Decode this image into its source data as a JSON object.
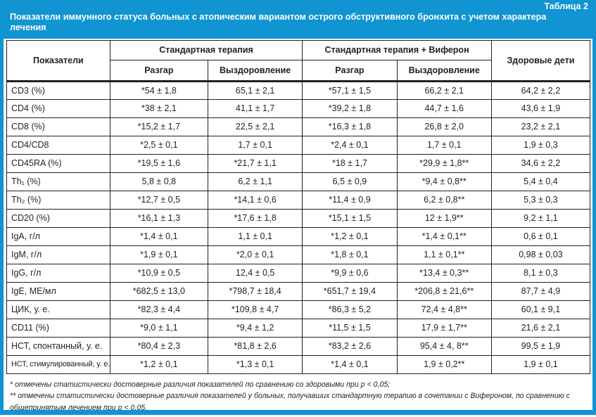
{
  "page": {
    "table_label": "Таблица 2",
    "title": "Показатели иммунного статуса больных с атопическим вариантом острого обструктивного бронхита с учетом характера лечения"
  },
  "table": {
    "col_headers": {
      "indicators": "Показатели",
      "group1": "Стандартная терапия",
      "group2": "Стандартная терапия + Виферон",
      "healthy": "Здоровые дети",
      "sub1": "Разгар",
      "sub2": "Выздоровление",
      "sub3": "Разгар",
      "sub4": "Выздоровление"
    },
    "rows": [
      {
        "label": "CD3 (%)",
        "values": [
          "*54 ± 1,8",
          "65,1 ± 2,1",
          "*57,1 ± 1,5",
          "66,2 ± 2,1",
          "64,2 ± 2,2"
        ]
      },
      {
        "label": "CD4 (%)",
        "values": [
          "*38 ± 2,1",
          "41,1 ± 1,7",
          "*39,2 ± 1,8",
          "44,7 ± 1,6",
          "43,6 ± 1,9"
        ]
      },
      {
        "label": "CD8 (%)",
        "values": [
          "*15,2 ± 1,7",
          "22,5 ± 2,1",
          "*16,3 ± 1,8",
          "26,8 ± 2,0",
          "23,2 ± 2,1"
        ]
      },
      {
        "label": "CD4/CD8",
        "values": [
          "*2,5 ± 0,1",
          "1,7 ± 0,1",
          "*2,4 ± 0,1",
          "1,7 ± 0,1",
          "1,9 ± 0,3"
        ]
      },
      {
        "label": "CD45RA (%)",
        "values": [
          "*19,5 ± 1,6",
          "*21,7 ± 1,1",
          "*18 ± 1,7",
          "*29,9 ± 1,8**",
          "34,6 ± 2,2"
        ]
      },
      {
        "label": "Th₁ (%)",
        "values": [
          "5,8 ± 0,8",
          "6,2 ± 1,1",
          "6,5 ± 0,9",
          "*9,4 ± 0,8**",
          "5,4 ± 0,4"
        ]
      },
      {
        "label": "Th₂ (%)",
        "values": [
          "*12,7 ± 0,5",
          "*14,1 ± 0,6",
          "*11,4 ± 0,9",
          "6,2 ± 0,8**",
          "5,3 ± 0,3"
        ]
      },
      {
        "label": "CD20 (%)",
        "values": [
          "*16,1 ± 1,3",
          "*17,6 ± 1,8",
          "*15,1 ± 1,5",
          "12 ± 1,9**",
          "9,2 ± 1,1"
        ]
      },
      {
        "label": "IgA, г/л",
        "values": [
          "*1,4 ± 0,1",
          "1,1 ± 0,1",
          "*1,2 ± 0,1",
          "*1,4 ± 0,1**",
          "0,6 ± 0,1"
        ]
      },
      {
        "label": "IgM, г/л",
        "values": [
          "*1,9 ± 0,1",
          "*2,0 ± 0,1",
          "*1,8 ± 0,1",
          "1,1 ± 0,1**",
          "0,98 ± 0,03"
        ]
      },
      {
        "label": "IgG, г/л",
        "values": [
          "*10,9 ± 0,5",
          "12,4 ± 0,5",
          "*9,9 ± 0,6",
          "*13,4 ± 0,3**",
          "8,1 ± 0,3"
        ]
      },
      {
        "label": "IgE, МЕ/мл",
        "values": [
          "*682,5 ± 13,0",
          "*798,7 ± 18,4",
          "*651,7 ± 19,4",
          "*206,8 ± 21,6**",
          "87,7 ± 4,9"
        ]
      },
      {
        "label": "ЦИК, у. е.",
        "values": [
          "*82,3 ± 4,4",
          "*109,8 ± 4,7",
          "*86,3 ± 5,2",
          "72,4 ± 4,8**",
          "60,1 ± 9,1"
        ]
      },
      {
        "label": "CD11 (%)",
        "values": [
          "*9,0 ± 1,1",
          "*9,4 ± 1,2",
          "*11,5 ± 1,5",
          "17,9 ± 1,7**",
          "21,6 ± 2,1"
        ]
      },
      {
        "label": "НСТ, спонтанный, у. е.",
        "values": [
          "*80,4 ± 2,3",
          "*81,8 ± 2,6",
          "*83,2 ± 2,6",
          "95,4 ± 4, 8**",
          "99,5 ± 1,9"
        ]
      },
      {
        "label": "НСТ, стимулированный, у. е.",
        "values": [
          "*1,2 ± 0,1",
          "*1,3 ± 0,1",
          "*1,4 ± 0,1",
          "1,9 ± 0,2**",
          "1,9 ± 0,1"
        ]
      }
    ]
  },
  "footnotes": [
    "* отмечены статистически достоверные различия показателей по сравнению со здоровыми при p < 0,05;",
    "** отмечены статистически достоверные различия показателей у больных, получавших стандартную терапию в сочетании с Вифероном, по сравнению с общепринятым лечением при p < 0,05."
  ],
  "colors": {
    "accent_blue": "#1094d2",
    "text_black": "#231f20"
  }
}
